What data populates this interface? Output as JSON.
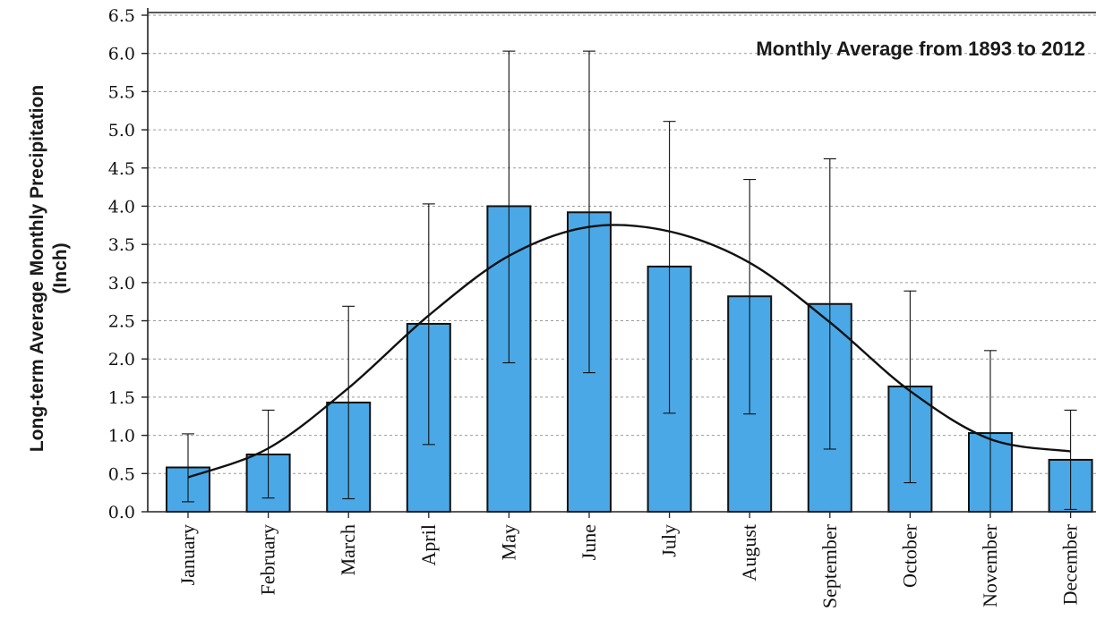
{
  "chart_data": {
    "type": "bar",
    "title": "Monthly Average from 1893 to 2012",
    "ylabel_line1": "Long-term  Average Monthly Precipitation",
    "ylabel_line2": "(Inch)",
    "xlabel": "",
    "ylim": [
      0,
      6.5
    ],
    "yticks": [
      "0.0",
      "0.5",
      "1.0",
      "1.5",
      "2.0",
      "2.5",
      "3.0",
      "3.5",
      "4.0",
      "4.5",
      "5.0",
      "5.5",
      "6.0",
      "6.5"
    ],
    "grid": true,
    "categories": [
      "January",
      "February",
      "March",
      "April",
      "May",
      "June",
      "July",
      "August",
      "September",
      "October",
      "November",
      "December"
    ],
    "values": [
      0.58,
      0.75,
      1.43,
      2.46,
      4.0,
      3.92,
      3.21,
      2.82,
      2.72,
      1.64,
      1.03,
      0.68
    ],
    "error_low": [
      0.13,
      0.18,
      0.17,
      0.88,
      1.95,
      1.82,
      1.29,
      1.28,
      0.82,
      0.38,
      0.0,
      0.03
    ],
    "error_high": [
      1.02,
      1.33,
      2.69,
      4.03,
      6.03,
      6.03,
      5.11,
      4.35,
      4.62,
      2.89,
      2.11,
      1.33
    ],
    "trendline": [
      0.45,
      0.83,
      1.62,
      2.57,
      3.35,
      3.73,
      3.67,
      3.26,
      2.48,
      1.58,
      0.95,
      0.79
    ],
    "bar_color": "#4aa8e6",
    "line_color": "#111111"
  }
}
